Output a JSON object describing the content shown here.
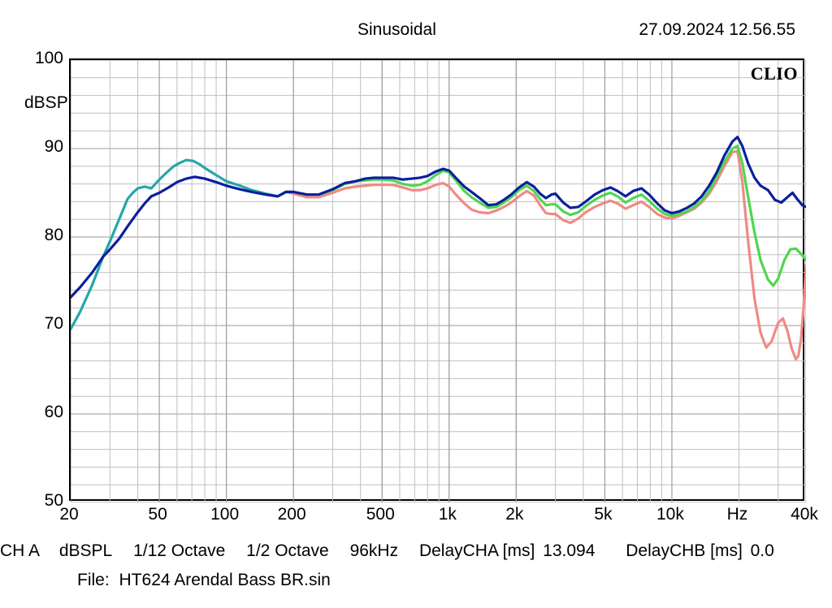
{
  "header": {
    "title": "Sinusoidal",
    "timestamp": "27.09.2024 12.56.55"
  },
  "brand": "CLIO",
  "y_axis": {
    "label": "dBSPL",
    "lim": [
      50,
      100
    ],
    "ticks": [
      50,
      60,
      70,
      80,
      90,
      100
    ],
    "minor_grid_step": 2,
    "label_fontsize": 21
  },
  "x_axis": {
    "unit_label": "Hz",
    "lim": [
      20,
      40000
    ],
    "scale": "log",
    "major_ticks": [
      20,
      50,
      100,
      200,
      500,
      1000,
      2000,
      5000,
      10000,
      40000
    ],
    "tick_labels": [
      "20",
      "50",
      "100",
      "200",
      "500",
      "1k",
      "2k",
      "5k",
      "10k",
      "40k"
    ],
    "unit_label_pos_hz": 20000,
    "label_fontsize": 21
  },
  "chart": {
    "type": "line",
    "background_color": "#ffffff",
    "grid_major_color": "#999999",
    "grid_minor_color": "#bfbfbf",
    "line_width": 3.2,
    "series": [
      {
        "name": "teal",
        "color": "#24a6aa",
        "data": [
          [
            20,
            69.6
          ],
          [
            22,
            71.5
          ],
          [
            25,
            74.6
          ],
          [
            28,
            77.8
          ],
          [
            30,
            79.5
          ],
          [
            33,
            82.0
          ],
          [
            36,
            84.3
          ],
          [
            38,
            85.0
          ],
          [
            40,
            85.5
          ],
          [
            43,
            85.7
          ],
          [
            46,
            85.5
          ],
          [
            50,
            86.5
          ],
          [
            54,
            87.3
          ],
          [
            58,
            88.0
          ],
          [
            62,
            88.4
          ],
          [
            66,
            88.7
          ],
          [
            71,
            88.6
          ],
          [
            76,
            88.2
          ],
          [
            80,
            87.8
          ],
          [
            90,
            87.0
          ],
          [
            100,
            86.3
          ],
          [
            115,
            85.8
          ],
          [
            130,
            85.3
          ],
          [
            150,
            84.9
          ],
          [
            170,
            84.6
          ],
          [
            185,
            85.1
          ]
        ]
      },
      {
        "name": "blue",
        "color": "#0b1f9d",
        "data": [
          [
            20,
            73.2
          ],
          [
            22,
            74.3
          ],
          [
            25,
            76.0
          ],
          [
            28,
            77.8
          ],
          [
            30,
            78.6
          ],
          [
            33,
            79.8
          ],
          [
            36,
            81.2
          ],
          [
            40,
            82.8
          ],
          [
            43,
            83.8
          ],
          [
            46,
            84.6
          ],
          [
            50,
            85.0
          ],
          [
            55,
            85.6
          ],
          [
            60,
            86.2
          ],
          [
            66,
            86.6
          ],
          [
            72,
            86.8
          ],
          [
            80,
            86.6
          ],
          [
            90,
            86.2
          ],
          [
            100,
            85.8
          ],
          [
            115,
            85.4
          ],
          [
            130,
            85.1
          ],
          [
            150,
            84.8
          ],
          [
            170,
            84.6
          ],
          [
            185,
            85.1
          ],
          [
            200,
            85.1
          ],
          [
            230,
            84.8
          ],
          [
            260,
            84.8
          ],
          [
            300,
            85.4
          ],
          [
            340,
            86.1
          ],
          [
            380,
            86.3
          ],
          [
            420,
            86.6
          ],
          [
            460,
            86.7
          ],
          [
            500,
            86.7
          ],
          [
            560,
            86.7
          ],
          [
            620,
            86.5
          ],
          [
            680,
            86.6
          ],
          [
            740,
            86.7
          ],
          [
            800,
            86.9
          ],
          [
            870,
            87.4
          ],
          [
            940,
            87.7
          ],
          [
            1000,
            87.5
          ],
          [
            1080,
            86.6
          ],
          [
            1170,
            85.7
          ],
          [
            1260,
            85.1
          ],
          [
            1370,
            84.4
          ],
          [
            1500,
            83.6
          ],
          [
            1630,
            83.7
          ],
          [
            1760,
            84.2
          ],
          [
            1900,
            84.8
          ],
          [
            2060,
            85.6
          ],
          [
            2230,
            86.2
          ],
          [
            2400,
            85.7
          ],
          [
            2560,
            84.9
          ],
          [
            2720,
            84.4
          ],
          [
            2880,
            84.8
          ],
          [
            3000,
            84.9
          ],
          [
            3250,
            83.9
          ],
          [
            3500,
            83.3
          ],
          [
            3800,
            83.4
          ],
          [
            4100,
            84.0
          ],
          [
            4500,
            84.8
          ],
          [
            4900,
            85.3
          ],
          [
            5300,
            85.6
          ],
          [
            5700,
            85.2
          ],
          [
            6200,
            84.6
          ],
          [
            6700,
            85.2
          ],
          [
            7300,
            85.5
          ],
          [
            7900,
            84.8
          ],
          [
            8600,
            83.8
          ],
          [
            9300,
            83.0
          ],
          [
            10000,
            82.7
          ],
          [
            10800,
            82.9
          ],
          [
            11700,
            83.3
          ],
          [
            12600,
            83.8
          ],
          [
            13600,
            84.6
          ],
          [
            14700,
            85.8
          ],
          [
            15900,
            87.3
          ],
          [
            17200,
            89.2
          ],
          [
            18700,
            90.8
          ],
          [
            19700,
            91.3
          ],
          [
            20700,
            90.3
          ],
          [
            22000,
            88.3
          ],
          [
            23500,
            86.7
          ],
          [
            25000,
            85.8
          ],
          [
            27000,
            85.3
          ],
          [
            29000,
            84.2
          ],
          [
            31000,
            83.9
          ],
          [
            33000,
            84.5
          ],
          [
            34800,
            85.0
          ],
          [
            36500,
            84.3
          ],
          [
            38500,
            83.6
          ],
          [
            40000,
            83.4
          ]
        ]
      },
      {
        "name": "green",
        "color": "#4fd64f",
        "data": [
          [
            185,
            85.1
          ],
          [
            200,
            85.1
          ],
          [
            230,
            84.8
          ],
          [
            260,
            84.8
          ],
          [
            300,
            85.3
          ],
          [
            340,
            86.0
          ],
          [
            380,
            86.3
          ],
          [
            420,
            86.4
          ],
          [
            460,
            86.5
          ],
          [
            500,
            86.5
          ],
          [
            560,
            86.4
          ],
          [
            620,
            86.0
          ],
          [
            680,
            85.8
          ],
          [
            740,
            85.9
          ],
          [
            800,
            86.3
          ],
          [
            870,
            87.0
          ],
          [
            940,
            87.5
          ],
          [
            1000,
            87.3
          ],
          [
            1080,
            86.3
          ],
          [
            1170,
            85.2
          ],
          [
            1260,
            84.5
          ],
          [
            1370,
            83.9
          ],
          [
            1500,
            83.3
          ],
          [
            1630,
            83.4
          ],
          [
            1760,
            83.9
          ],
          [
            1900,
            84.5
          ],
          [
            2060,
            85.3
          ],
          [
            2230,
            85.8
          ],
          [
            2400,
            85.2
          ],
          [
            2560,
            84.3
          ],
          [
            2720,
            83.6
          ],
          [
            2880,
            83.7
          ],
          [
            3000,
            83.7
          ],
          [
            3250,
            82.9
          ],
          [
            3500,
            82.5
          ],
          [
            3800,
            82.8
          ],
          [
            4100,
            83.5
          ],
          [
            4500,
            84.2
          ],
          [
            4900,
            84.7
          ],
          [
            5300,
            85.0
          ],
          [
            5700,
            84.6
          ],
          [
            6200,
            83.9
          ],
          [
            6700,
            84.4
          ],
          [
            7300,
            84.8
          ],
          [
            7900,
            84.1
          ],
          [
            8600,
            83.2
          ],
          [
            9300,
            82.6
          ],
          [
            10000,
            82.4
          ],
          [
            10800,
            82.6
          ],
          [
            11700,
            82.9
          ],
          [
            12600,
            83.4
          ],
          [
            13600,
            84.1
          ],
          [
            14700,
            85.2
          ],
          [
            15900,
            86.8
          ],
          [
            17200,
            88.5
          ],
          [
            18700,
            90.0
          ],
          [
            19700,
            90.3
          ],
          [
            20700,
            88.4
          ],
          [
            22000,
            84.5
          ],
          [
            23500,
            80.5
          ],
          [
            25000,
            77.4
          ],
          [
            27000,
            75.2
          ],
          [
            28500,
            74.5
          ],
          [
            30000,
            75.3
          ],
          [
            32000,
            77.4
          ],
          [
            34000,
            78.6
          ],
          [
            36000,
            78.7
          ],
          [
            38000,
            78.1
          ],
          [
            40000,
            77.4
          ]
        ]
      },
      {
        "name": "salmon",
        "color": "#f08a84",
        "data": [
          [
            185,
            85.1
          ],
          [
            200,
            84.9
          ],
          [
            230,
            84.5
          ],
          [
            260,
            84.5
          ],
          [
            300,
            85.0
          ],
          [
            340,
            85.5
          ],
          [
            380,
            85.7
          ],
          [
            420,
            85.8
          ],
          [
            460,
            85.9
          ],
          [
            500,
            85.9
          ],
          [
            560,
            85.9
          ],
          [
            620,
            85.6
          ],
          [
            680,
            85.3
          ],
          [
            740,
            85.3
          ],
          [
            800,
            85.5
          ],
          [
            870,
            85.9
          ],
          [
            940,
            86.1
          ],
          [
            1000,
            85.7
          ],
          [
            1080,
            84.7
          ],
          [
            1170,
            83.8
          ],
          [
            1260,
            83.1
          ],
          [
            1370,
            82.8
          ],
          [
            1500,
            82.7
          ],
          [
            1630,
            83.0
          ],
          [
            1760,
            83.4
          ],
          [
            1900,
            83.9
          ],
          [
            2060,
            84.6
          ],
          [
            2230,
            85.2
          ],
          [
            2400,
            84.7
          ],
          [
            2560,
            83.6
          ],
          [
            2720,
            82.7
          ],
          [
            2880,
            82.6
          ],
          [
            3000,
            82.6
          ],
          [
            3250,
            81.9
          ],
          [
            3500,
            81.6
          ],
          [
            3800,
            82.1
          ],
          [
            4100,
            82.8
          ],
          [
            4500,
            83.4
          ],
          [
            4900,
            83.8
          ],
          [
            5300,
            84.1
          ],
          [
            5700,
            83.8
          ],
          [
            6200,
            83.2
          ],
          [
            6700,
            83.6
          ],
          [
            7300,
            84.0
          ],
          [
            7900,
            83.4
          ],
          [
            8600,
            82.6
          ],
          [
            9300,
            82.2
          ],
          [
            10000,
            82.1
          ],
          [
            10800,
            82.4
          ],
          [
            11700,
            82.8
          ],
          [
            12600,
            83.2
          ],
          [
            13600,
            83.9
          ],
          [
            14700,
            84.9
          ],
          [
            15900,
            86.3
          ],
          [
            17200,
            88.0
          ],
          [
            18700,
            89.6
          ],
          [
            19700,
            89.7
          ],
          [
            20700,
            86.3
          ],
          [
            22000,
            79.5
          ],
          [
            23500,
            73.0
          ],
          [
            25000,
            69.2
          ],
          [
            26500,
            67.5
          ],
          [
            28000,
            68.2
          ],
          [
            30000,
            70.3
          ],
          [
            31500,
            70.8
          ],
          [
            33000,
            69.4
          ],
          [
            34500,
            67.4
          ],
          [
            36000,
            66.2
          ],
          [
            37000,
            66.6
          ],
          [
            38000,
            68.5
          ],
          [
            39000,
            72.0
          ],
          [
            40000,
            76.8
          ]
        ]
      }
    ]
  },
  "footer": {
    "ch": "CH A",
    "unit": "dBSPL",
    "smoothing1": "1/12 Octave",
    "smoothing2": "1/2 Octave",
    "fs": "96kHz",
    "delayA_label": "DelayCHA [ms]",
    "delayA_val": "13.094",
    "delayB_label": "DelayCHB [ms]",
    "delayB_val": "0.0",
    "file_label": "File:",
    "file_name": "HT624 Arendal Bass BR.sin"
  }
}
